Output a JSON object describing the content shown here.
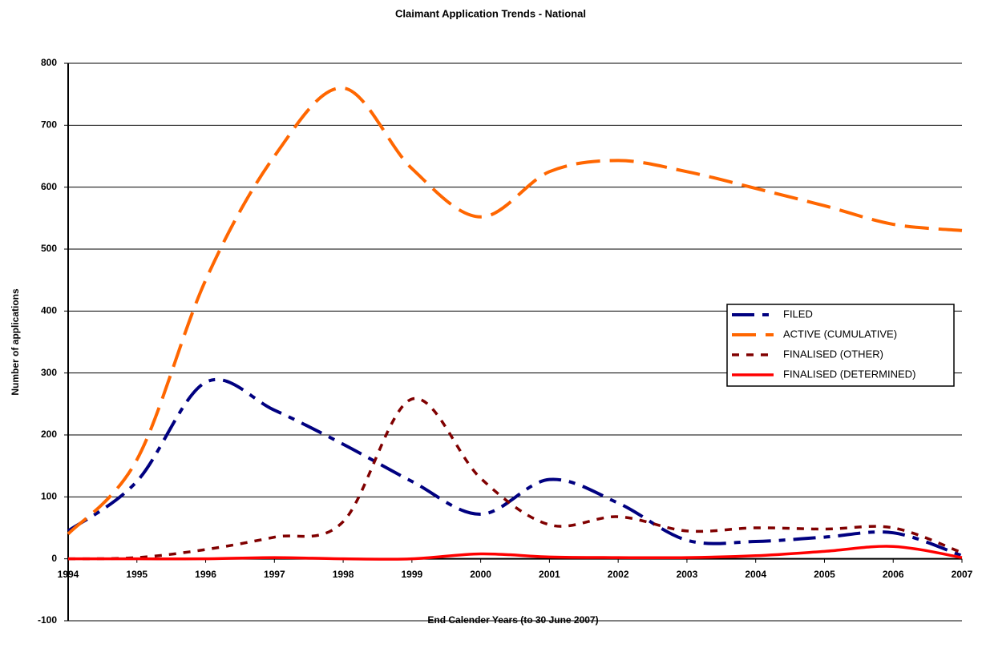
{
  "chart_data": {
    "type": "line",
    "title": "Claimant Application Trends - National",
    "x_label": "End Calender Years (to 30 June 2007)",
    "y_label": "Number of applications",
    "x": [
      1994,
      1995,
      1996,
      1997,
      1998,
      1999,
      2000,
      2001,
      2002,
      2003,
      2004,
      2005,
      2006,
      2007
    ],
    "xlim": [
      1994,
      2007
    ],
    "xticks": [
      1994,
      1995,
      1996,
      1997,
      1998,
      1999,
      2000,
      2001,
      2002,
      2003,
      2004,
      2005,
      2006,
      2007
    ],
    "ylim": [
      -100,
      800
    ],
    "yticks": [
      -100,
      0,
      100,
      200,
      300,
      400,
      500,
      600,
      700,
      800
    ],
    "grid": true,
    "legend": "right",
    "series": [
      {
        "name": "FILED",
        "color": "#000080",
        "style": "dashdot",
        "values": [
          45,
          125,
          285,
          240,
          185,
          125,
          72,
          128,
          90,
          30,
          28,
          35,
          42,
          5
        ]
      },
      {
        "name": "ACTIVE (CUMULATIVE)",
        "color": "#ff6600",
        "style": "dashed",
        "values": [
          40,
          160,
          450,
          650,
          760,
          630,
          552,
          625,
          643,
          625,
          598,
          570,
          540,
          530
        ]
      },
      {
        "name": "FINALISED (OTHER)",
        "color": "#800000",
        "style": "dotted",
        "values": [
          0,
          2,
          15,
          35,
          60,
          258,
          130,
          55,
          68,
          45,
          50,
          48,
          50,
          10
        ]
      },
      {
        "name": "FINALISED (DETERMINED)",
        "color": "#ff0000",
        "style": "solid",
        "values": [
          0,
          0,
          0,
          2,
          0,
          0,
          8,
          3,
          2,
          2,
          5,
          12,
          20,
          2
        ]
      }
    ]
  }
}
